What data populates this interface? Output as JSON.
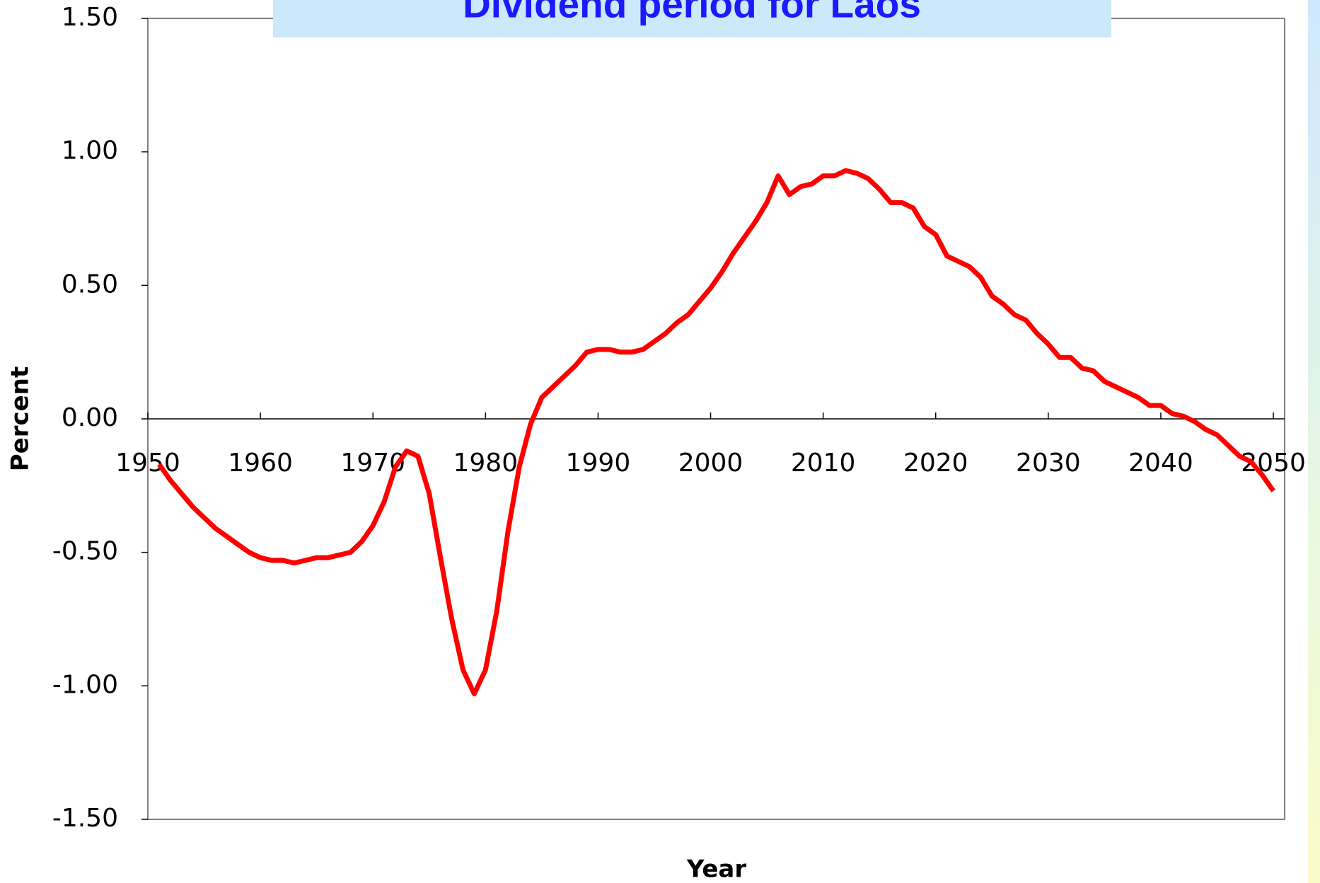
{
  "chart_data": {
    "type": "line",
    "title": "Dividend period for Laos",
    "x_label": "Year",
    "y_label": "Percent",
    "x": [
      1951,
      1952,
      1953,
      1954,
      1955,
      1956,
      1957,
      1958,
      1959,
      1960,
      1961,
      1962,
      1963,
      1964,
      1965,
      1966,
      1967,
      1968,
      1969,
      1970,
      1971,
      1972,
      1973,
      1974,
      1975,
      1976,
      1977,
      1978,
      1979,
      1980,
      1981,
      1982,
      1983,
      1984,
      1985,
      1986,
      1987,
      1988,
      1989,
      1990,
      1991,
      1992,
      1993,
      1994,
      1995,
      1996,
      1997,
      1998,
      1999,
      2000,
      2001,
      2002,
      2003,
      2004,
      2005,
      2006,
      2007,
      2008,
      2009,
      2010,
      2011,
      2012,
      2013,
      2014,
      2015,
      2016,
      2017,
      2018,
      2019,
      2020,
      2021,
      2022,
      2023,
      2024,
      2025,
      2026,
      2027,
      2028,
      2029,
      2030,
      2031,
      2032,
      2033,
      2034,
      2035,
      2036,
      2037,
      2038,
      2039,
      2040,
      2041,
      2042,
      2043,
      2044,
      2045,
      2046,
      2047,
      2048,
      2049,
      2050
    ],
    "series": [
      {
        "name": "Percent",
        "color": "#ff0000",
        "values": [
          -0.17,
          -0.23,
          -0.28,
          -0.33,
          -0.37,
          -0.41,
          -0.44,
          -0.47,
          -0.5,
          -0.52,
          -0.53,
          -0.53,
          -0.54,
          -0.53,
          -0.52,
          -0.52,
          -0.51,
          -0.5,
          -0.46,
          -0.4,
          -0.31,
          -0.18,
          -0.12,
          -0.14,
          -0.28,
          -0.52,
          -0.75,
          -0.94,
          -1.03,
          -0.94,
          -0.72,
          -0.42,
          -0.18,
          -0.02,
          0.08,
          0.12,
          0.16,
          0.2,
          0.25,
          0.26,
          0.26,
          0.25,
          0.25,
          0.26,
          0.29,
          0.32,
          0.36,
          0.39,
          0.44,
          0.49,
          0.55,
          0.62,
          0.68,
          0.74,
          0.81,
          0.91,
          0.84,
          0.87,
          0.88,
          0.91,
          0.91,
          0.93,
          0.92,
          0.9,
          0.86,
          0.81,
          0.81,
          0.79,
          0.72,
          0.69,
          0.61,
          0.59,
          0.57,
          0.53,
          0.46,
          0.43,
          0.39,
          0.37,
          0.32,
          0.28,
          0.23,
          0.23,
          0.19,
          0.18,
          0.14,
          0.12,
          0.1,
          0.08,
          0.05,
          0.05,
          0.02,
          0.01,
          -0.01,
          -0.04,
          -0.06,
          -0.1,
          -0.14,
          -0.16,
          -0.21,
          -0.27
        ]
      }
    ],
    "xlim": [
      1950,
      2051
    ],
    "xticks": [
      1950,
      1960,
      1970,
      1980,
      1990,
      2000,
      2010,
      2020,
      2030,
      2040,
      2050
    ],
    "ylim": [
      -1.5,
      1.5
    ],
    "yticks": [
      {
        "value": -1.5,
        "label": "-1.50"
      },
      {
        "value": -1,
        "label": "-1.00"
      },
      {
        "value": -0.5,
        "label": "-0.50"
      },
      {
        "value": 0,
        "label": "0.00"
      },
      {
        "value": 0.5,
        "label": "0.50"
      },
      {
        "value": 1,
        "label": "1.00"
      },
      {
        "value": 1.5,
        "label": "1.50"
      }
    ]
  }
}
